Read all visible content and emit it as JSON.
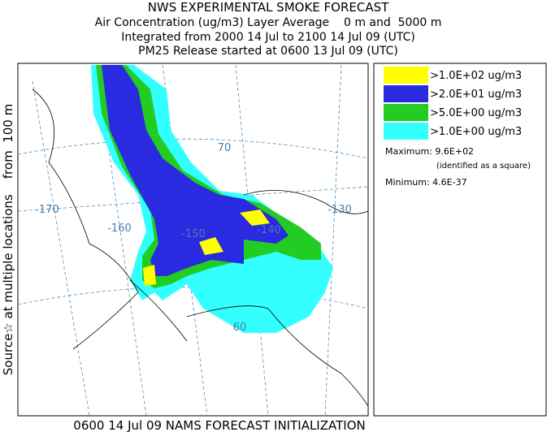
{
  "header": {
    "lines": [
      "NWS EXPERIMENTAL SMOKE FORECAST",
      "Air Concentration (ug/m3) Layer Average    0 m and  5000 m",
      "Integrated from 2000 14 Jul to 2100 14 Jul 09 (UTC)",
      "PM25 Release started at 0600 13 Jul 09 (UTC)"
    ]
  },
  "side_label": "Source☆ at multiple locations    from  100 m",
  "legend": {
    "entries": [
      {
        "label": ">1.0E+02 ug/m3",
        "color": "#ffff00"
      },
      {
        "label": ">2.0E+01 ug/m3",
        "color": "#2a2ae0"
      },
      {
        "label": ">5.0E+00 ug/m3",
        "color": "#22cc22"
      },
      {
        "label": ">1.0E+00 ug/m3",
        "color": "#33ffff"
      }
    ],
    "maximum": "Maximum: 9.6E+02",
    "maximum_note": "(identified as a square)",
    "minimum": "Minimum: 4.6E-37"
  },
  "map": {
    "labels": [
      "-170",
      "-160",
      "-150",
      "-140",
      "-130",
      "70",
      "60"
    ]
  },
  "footer": "0600 14 Jul 09 NAMS FORECAST INITIALIZATION"
}
